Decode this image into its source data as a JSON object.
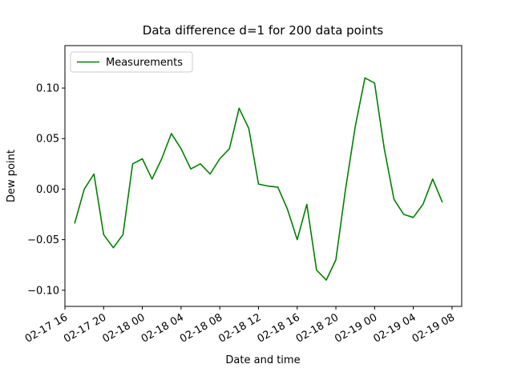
{
  "chart_data": {
    "type": "line",
    "title": "Data difference d=1 for 200 data points",
    "x_label": "Date and time",
    "y_label": "Dew point",
    "x": [
      "02-17 17",
      "02-17 18",
      "02-17 19",
      "02-17 20",
      "02-17 21",
      "02-17 22",
      "02-17 23",
      "02-18 00",
      "02-18 01",
      "02-18 02",
      "02-18 03",
      "02-18 04",
      "02-18 05",
      "02-18 06",
      "02-18 07",
      "02-18 08",
      "02-18 09",
      "02-18 10",
      "02-18 11",
      "02-18 12",
      "02-18 13",
      "02-18 14",
      "02-18 15",
      "02-18 16",
      "02-18 17",
      "02-18 18",
      "02-18 19",
      "02-18 20",
      "02-18 21",
      "02-18 22",
      "02-18 23",
      "02-19 00",
      "02-19 01",
      "02-19 02",
      "02-19 03",
      "02-19 04",
      "02-19 05",
      "02-19 06",
      "02-19 07"
    ],
    "series": [
      {
        "name": "Measurements",
        "color": "#008000",
        "values": [
          -0.034,
          0.0,
          0.015,
          -0.045,
          -0.058,
          -0.045,
          0.025,
          0.03,
          0.01,
          0.03,
          0.055,
          0.04,
          0.02,
          0.025,
          0.015,
          0.03,
          0.04,
          0.08,
          0.06,
          0.005,
          0.003,
          0.002,
          -0.02,
          -0.05,
          -0.015,
          -0.08,
          -0.09,
          -0.07,
          0.0,
          0.062,
          0.11,
          0.105,
          0.04,
          -0.01,
          -0.025,
          -0.028,
          -0.015,
          0.01,
          -0.013
        ]
      }
    ],
    "xlim": [
      "02-17 16",
      "02-19 09"
    ],
    "xticks": [
      "02-17 16",
      "02-17 20",
      "02-18 00",
      "02-18 04",
      "02-18 08",
      "02-18 12",
      "02-18 16",
      "02-18 20",
      "02-19 00",
      "02-19 04",
      "02-19 08"
    ],
    "ylim": [
      -0.116,
      0.142
    ],
    "yticks": [
      {
        "value": -0.1,
        "label": "−0.10"
      },
      {
        "value": -0.05,
        "label": "−0.05"
      },
      {
        "value": 0,
        "label": "0.00"
      },
      {
        "value": 0.05,
        "label": "0.05"
      },
      {
        "value": 0.1,
        "label": "0.10"
      }
    ],
    "legend": "upper left"
  }
}
